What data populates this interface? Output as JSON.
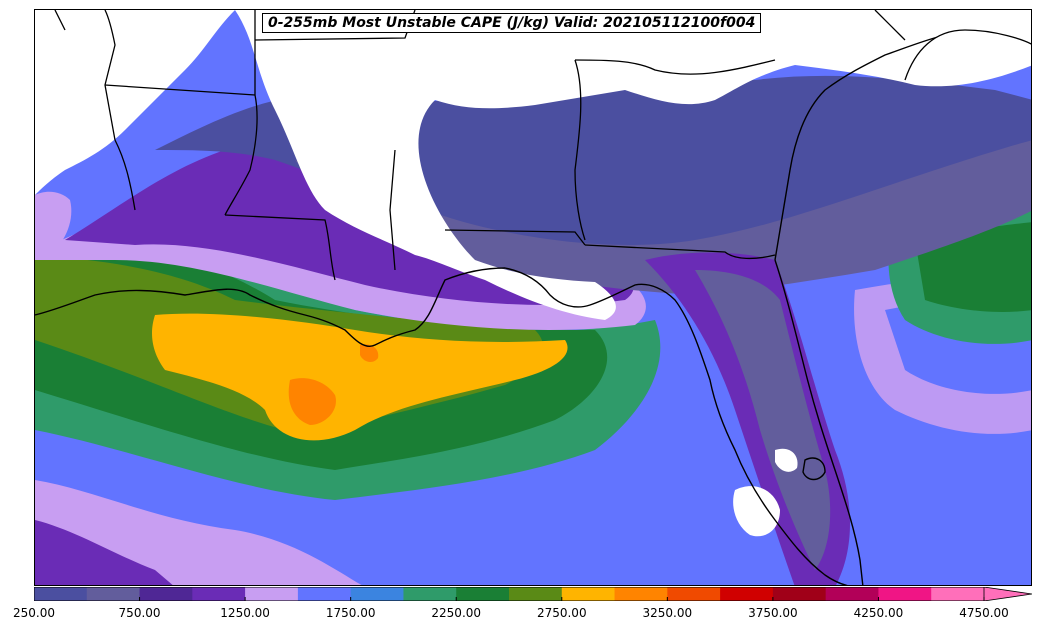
{
  "title": "0-255mb Most Unstable CAPE (J/kg) Valid: 202105112100f004",
  "colorbar": {
    "ticks": [
      "250.00",
      "750.00",
      "1250.00",
      "1750.00",
      "2250.00",
      "2750.00",
      "3250.00",
      "3750.00",
      "4250.00",
      "4750.00"
    ],
    "colors": [
      "#4b4fa0",
      "#625d9c",
      "#4f2795",
      "#6a2cb6",
      "#c89ef2",
      "#6274ff",
      "#3b84e0",
      "#2f9b6a",
      "#1a7f35",
      "#5a8a16",
      "#ffb400",
      "#ff8400",
      "#f04a00",
      "#d00000",
      "#a00018",
      "#b20058",
      "#f01585",
      "#ff6fba"
    ],
    "extend": "max"
  },
  "map": {
    "region": "Gulf of Mexico and southeastern United States",
    "field": "cape"
  }
}
